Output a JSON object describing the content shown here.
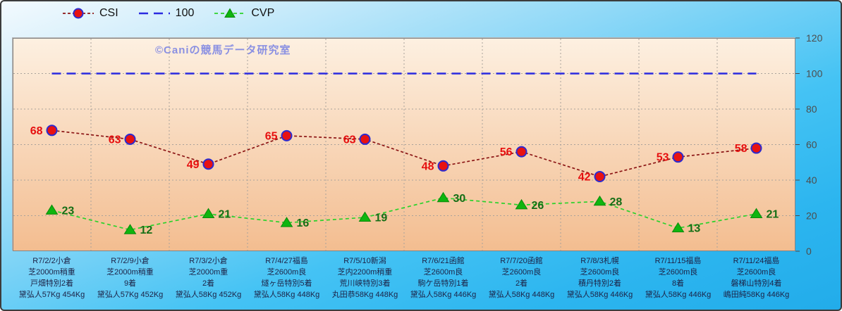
{
  "chart_data": {
    "type": "line",
    "watermark": "©Caniの競馬データ研究室",
    "ylim": [
      0,
      120
    ],
    "yticks": [
      0,
      20,
      40,
      60,
      80,
      100,
      120
    ],
    "gridline_values": [
      20,
      40,
      60,
      80,
      100
    ],
    "grid": "on",
    "legend_position": "top",
    "categories": [
      [
        "R7/2/2小倉",
        "芝2000m稍重",
        "戸畑特別2着",
        "黛弘人57Kg 454Kg"
      ],
      [
        "R7/2/9小倉",
        "芝2000m稍重",
        "9着",
        "黛弘人57Kg 452Kg"
      ],
      [
        "R7/3/2小倉",
        "芝2000m重",
        "2着",
        "黛弘人58Kg 452Kg"
      ],
      [
        "R7/4/27福島",
        "芝2600m良",
        "燧ヶ岳特別5着",
        "黛弘人58Kg 448Kg"
      ],
      [
        "R7/5/10新潟",
        "芝内2200m稍重",
        "荒川峡特別3着",
        "丸田恭58Kg 448Kg"
      ],
      [
        "R7/6/21函館",
        "芝2600m良",
        "駒ケ岳特別1着",
        "黛弘人58Kg 446Kg"
      ],
      [
        "R7/7/20函館",
        "芝2600m良",
        "2着",
        "黛弘人58Kg 448Kg"
      ],
      [
        "R7/8/3札幌",
        "芝2600m良",
        "積丹特別2着",
        "黛弘人58Kg 446Kg"
      ],
      [
        "R7/11/15福島",
        "芝2600m良",
        "8着",
        "黛弘人58Kg 446Kg"
      ],
      [
        "R7/11/24福島",
        "芝2600m良",
        "磐梯山特別4着",
        "嶋田純58Kg 446Kg"
      ]
    ],
    "series": [
      {
        "name": "CSI",
        "values": [
          68,
          63,
          49,
          65,
          63,
          48,
          56,
          42,
          53,
          58
        ],
        "line_color": "#8b1414",
        "line_dash": "4 3",
        "line_width": 1.7,
        "marker": "circle",
        "marker_fill": "#e81212",
        "marker_stroke": "#2b2bd0",
        "label_color": "#e60f0f",
        "label_side": "left"
      },
      {
        "name": "100",
        "values": [
          100,
          100,
          100,
          100,
          100,
          100,
          100,
          100,
          100,
          100
        ],
        "line_color": "#2a2ae0",
        "line_dash": "13 8",
        "line_width": 2.4,
        "marker": "none",
        "label_side": "none"
      },
      {
        "name": "CVP",
        "values": [
          23,
          12,
          21,
          16,
          19,
          30,
          26,
          28,
          13,
          21
        ],
        "line_color": "#2bd22b",
        "line_dash": "5 4",
        "line_width": 1.7,
        "marker": "triangle",
        "marker_fill": "#0fb50f",
        "marker_stroke": "#0a8a0a",
        "label_color": "#156e15",
        "label_side": "right"
      }
    ],
    "colors": {
      "page_bg_top": "#f3fafe",
      "page_bg_bottom": "#22acea",
      "plot_bg_top": "#fdf0e1",
      "plot_bg_bottom": "#f3bd90",
      "gridline": "#a9a29b",
      "axis_text": "#4d4d4d",
      "category_text": "#1c2145",
      "watermark": "#8a90e2",
      "legend_text": "#111111"
    }
  }
}
